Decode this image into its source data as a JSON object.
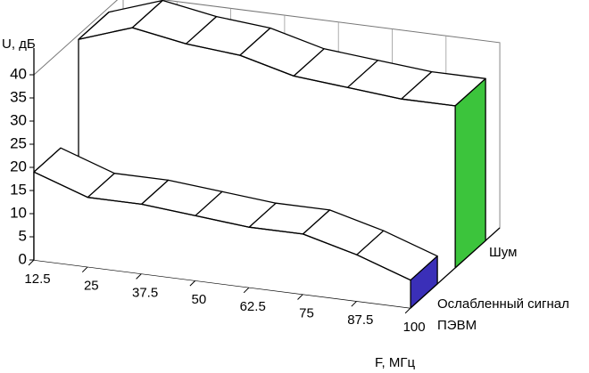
{
  "chart_data": {
    "type": "ribbon3d",
    "y_label": "U, дБ",
    "x_label": "F, МГц",
    "categories": [
      "12.5",
      "25",
      "37.5",
      "50",
      "62.5",
      "75",
      "87.5",
      "100"
    ],
    "series": [
      {
        "name": "Шум",
        "color": "#3cc43c",
        "values": [
          39,
          43,
          41,
          40,
          37,
          36,
          35,
          35
        ]
      },
      {
        "name": "Ослабленный сигнал ПЭВМ",
        "color": "#3a2fb8",
        "values": [
          19,
          15,
          15,
          14,
          13,
          13,
          10,
          6
        ]
      }
    ],
    "ylim": [
      0,
      40
    ],
    "yticks": [
      0,
      5,
      10,
      15,
      20,
      25,
      30,
      35,
      40
    ]
  }
}
